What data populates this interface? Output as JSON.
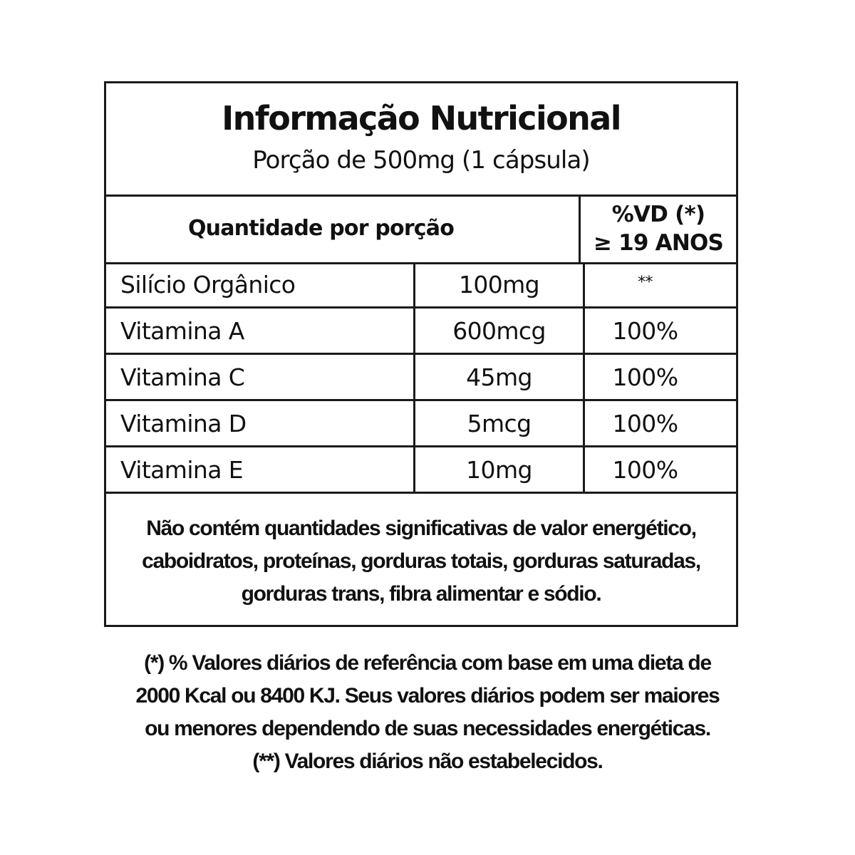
{
  "header": {
    "title": "Informação Nutricional",
    "subtitle": "Porção de 500mg (1 cápsula)"
  },
  "columns": {
    "quantity": "Quantidade por porção",
    "vd_line1": "%VD (*)",
    "vd_line2": "≥ 19 ANOS"
  },
  "rows": [
    {
      "name": "Silício Orgânico",
      "amount": "100mg",
      "vd": "**"
    },
    {
      "name": "Vitamina A",
      "amount": "600mcg",
      "vd": "100%"
    },
    {
      "name": "Vitamina C",
      "amount": "45mg",
      "vd": "100%"
    },
    {
      "name": "Vitamina D",
      "amount": "5mcg",
      "vd": "100%"
    },
    {
      "name": "Vitamina E",
      "amount": "10mg",
      "vd": "100%"
    }
  ],
  "notes": {
    "line1": "Não contém quantidades significativas de valor energético,",
    "line2": "caboidratos, proteínas, gorduras totais, gorduras saturadas,",
    "line3": "gorduras trans, fibra alimentar e sódio."
  },
  "footnote": {
    "line1": "(*) % Valores diários de referência com base em uma dieta de",
    "line2": "2000 Kcal ou 8400 KJ. Seus valores diários podem ser maiores",
    "line3": "ou menores dependendo de suas necessidades energéticas.",
    "line4": "(**) Valores diários não estabelecidos."
  }
}
